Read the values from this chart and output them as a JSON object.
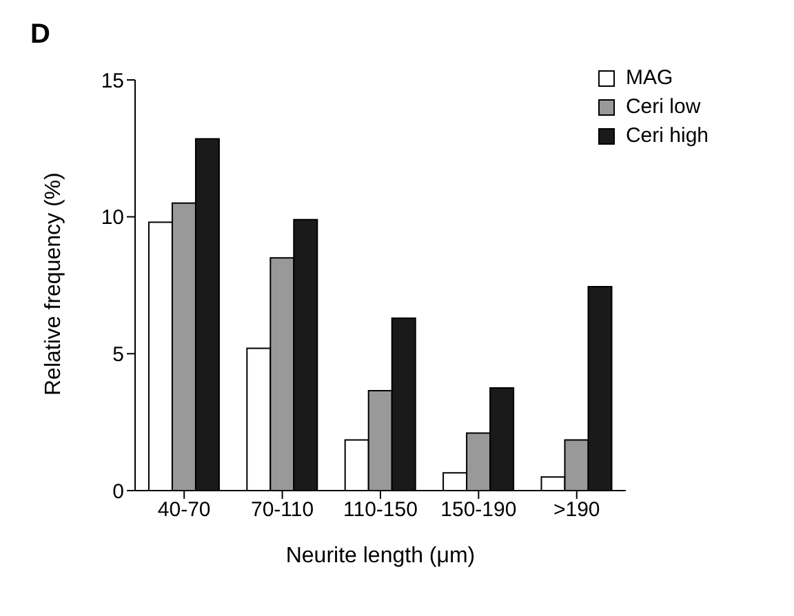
{
  "chart_data": {
    "type": "bar",
    "title": "D",
    "xlabel": "Neurite length (μm)",
    "ylabel": "Relative frequency (%)",
    "categories": [
      "40-70",
      "70-110",
      "110-150",
      "150-190",
      ">190"
    ],
    "series": [
      {
        "name": "MAG",
        "color": "#ffffff",
        "values": [
          9.8,
          5.2,
          1.85,
          0.65,
          0.5
        ]
      },
      {
        "name": "Ceri low",
        "color": "#999999",
        "values": [
          10.5,
          8.5,
          3.65,
          2.1,
          1.85
        ]
      },
      {
        "name": "Ceri high",
        "color": "#1a1a1a",
        "values": [
          12.85,
          9.9,
          6.3,
          3.75,
          7.45
        ]
      }
    ],
    "ylim": [
      0,
      15
    ],
    "yticks": [
      0,
      5,
      10,
      15
    ],
    "grid": false,
    "legend": "top right"
  }
}
